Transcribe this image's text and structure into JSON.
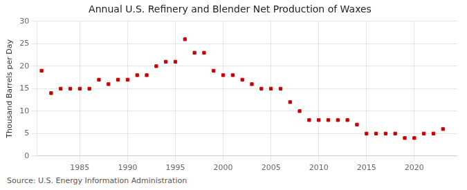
{
  "chart_data": {
    "type": "scatter",
    "title": "Annual U.S. Refinery and Blender Net Production of Waxes",
    "ylabel": "Thousand Barrels per Day",
    "annotations": [
      "Source: U.S. Energy Information Administration"
    ],
    "x": [
      1981,
      1982,
      1983,
      1984,
      1985,
      1986,
      1987,
      1988,
      1989,
      1990,
      1991,
      1992,
      1993,
      1994,
      1995,
      1996,
      1997,
      1998,
      1999,
      2000,
      2001,
      2002,
      2003,
      2004,
      2005,
      2006,
      2007,
      2008,
      2009,
      2010,
      2011,
      2012,
      2013,
      2014,
      2015,
      2016,
      2017,
      2018,
      2019,
      2020,
      2021,
      2022,
      2023
    ],
    "values": [
      19,
      14,
      15,
      15,
      15,
      15,
      17,
      16,
      17,
      17,
      18,
      18,
      20,
      21,
      21,
      26,
      23,
      23,
      19,
      18,
      18,
      17,
      16,
      15,
      15,
      15,
      12,
      10,
      8,
      8,
      8,
      8,
      8,
      7,
      5,
      5,
      5,
      5,
      4,
      4,
      5,
      5,
      6
    ],
    "color": "#cc0000",
    "marker": "square",
    "xlim": [
      1980.5,
      2024.5
    ],
    "xticks": [
      1985,
      1990,
      1995,
      2000,
      2005,
      2010,
      2015,
      2020
    ],
    "ylim": [
      0,
      30
    ],
    "yticks": [
      0,
      5,
      10,
      15,
      20,
      25,
      30
    ],
    "grid": true
  }
}
